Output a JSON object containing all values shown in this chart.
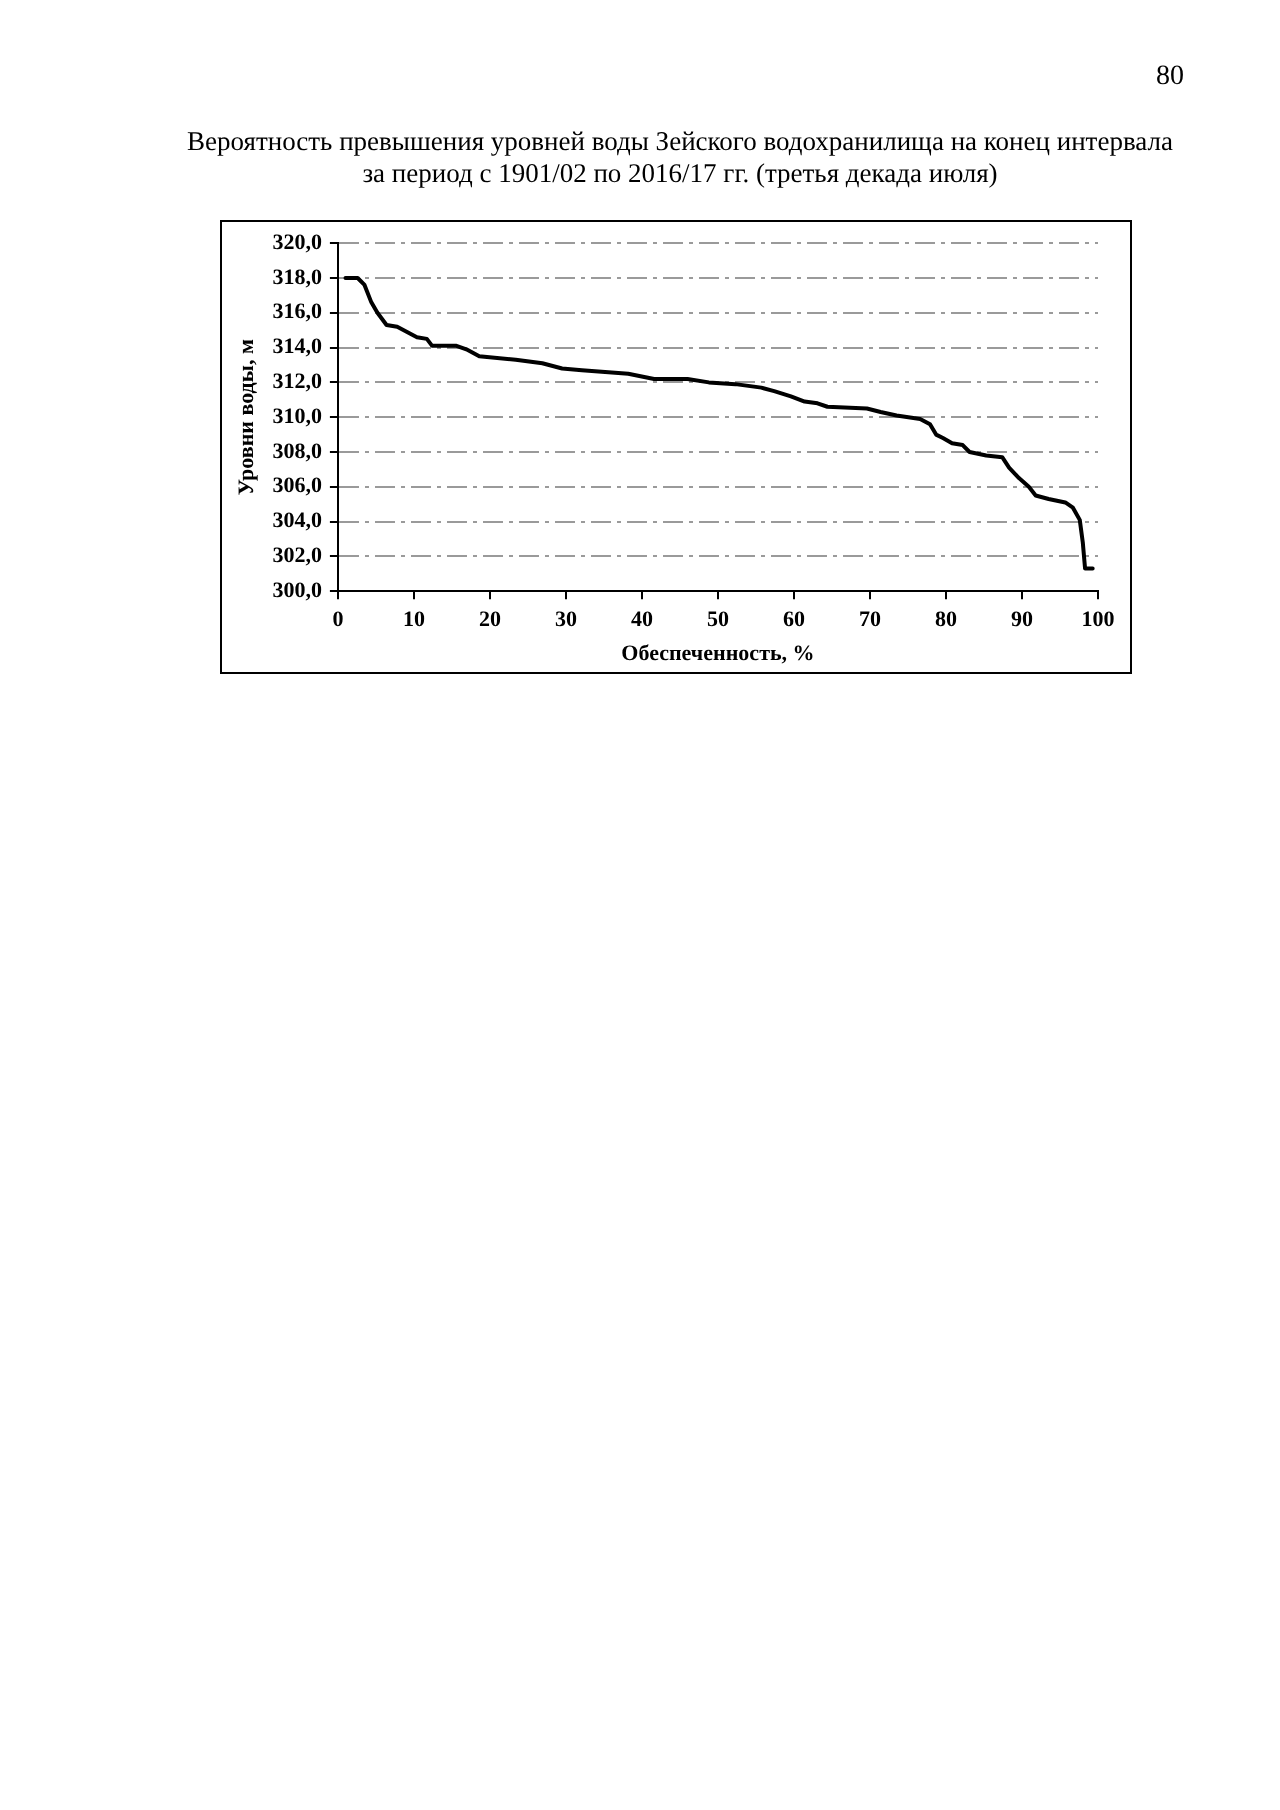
{
  "chart_data": {
    "type": "line",
    "title": "Вероятность превышения уровней воды Зейского водохранилища на конец интервала\nза период с 1901/02 по 2016/17 гг. (третья декада июля)",
    "xlabel": "Обеспеченность, %",
    "ylabel": "Уровни воды, м",
    "annotations": [
      "80"
    ],
    "x": [
      1.0,
      2.6,
      3.5,
      4.4,
      5.2,
      6.4,
      7.8,
      9.1,
      10.4,
      11.7,
      12.4,
      15.6,
      16.9,
      18.6,
      23.4,
      26.9,
      29.5,
      32.1,
      38.2,
      41.6,
      46.0,
      48.8,
      52.3,
      55.7,
      57.4,
      59.6,
      61.4,
      63.1,
      64.4,
      69.6,
      71.4,
      73.5,
      76.6,
      77.9,
      78.7,
      79.6,
      80.8,
      82.2,
      83.1,
      85.3,
      87.4,
      88.3,
      89.6,
      90.9,
      91.8,
      93.5,
      95.7,
      96.7,
      97.6,
      98.0,
      98.3,
      99.3
    ],
    "series": [
      {
        "color": "#000000",
        "values": [
          318.0,
          318.0,
          317.6,
          316.6,
          316.0,
          315.3,
          315.2,
          314.9,
          314.6,
          314.5,
          314.1,
          314.1,
          313.9,
          313.5,
          313.3,
          313.1,
          312.8,
          312.7,
          312.5,
          312.2,
          312.2,
          312.0,
          311.9,
          311.7,
          311.5,
          311.2,
          310.9,
          310.8,
          310.6,
          310.5,
          310.3,
          310.1,
          309.9,
          309.6,
          309.0,
          308.8,
          308.5,
          308.4,
          308.0,
          307.8,
          307.7,
          307.1,
          306.5,
          306.0,
          305.5,
          305.3,
          305.1,
          304.8,
          304.1,
          302.8,
          301.3,
          301.3
        ]
      }
    ],
    "xlim": [
      0,
      100
    ],
    "xticks": [
      0,
      10,
      20,
      30,
      40,
      50,
      60,
      70,
      80,
      90,
      100
    ],
    "ylim": [
      300,
      320
    ],
    "yticks": [
      {
        "value": 300,
        "label": "300,0"
      },
      {
        "value": 302,
        "label": "302,0"
      },
      {
        "value": 304,
        "label": "304,0"
      },
      {
        "value": 306,
        "label": "306,0"
      },
      {
        "value": 308,
        "label": "308,0"
      },
      {
        "value": 310,
        "label": "310,0"
      },
      {
        "value": 312,
        "label": "312,0"
      },
      {
        "value": 314,
        "label": "314,0"
      },
      {
        "value": 316,
        "label": "316,0"
      },
      {
        "value": 318,
        "label": "318,0"
      },
      {
        "value": 320,
        "label": "320,0"
      }
    ],
    "grid": "y",
    "marker": "none",
    "line_style": "solid"
  }
}
